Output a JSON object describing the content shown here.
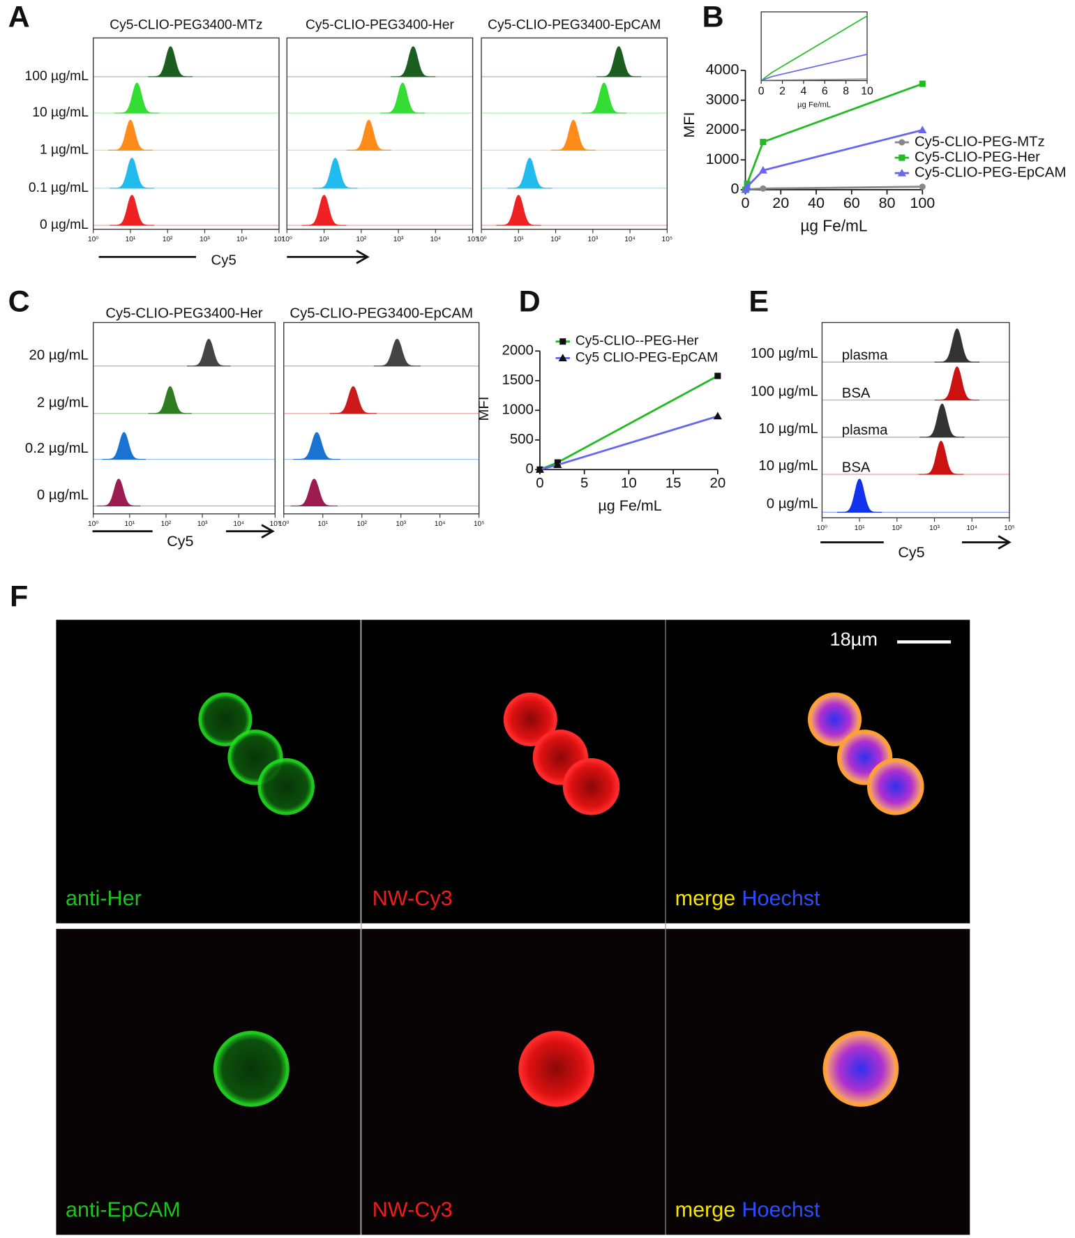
{
  "chart_data": [
    {
      "type": "ridgeline",
      "panel": "A",
      "categories": [
        "100 µg/mL",
        "10 µg/mL",
        "1 µg/mL",
        "0.1 µg/mL",
        "0 µg/mL"
      ],
      "series": [
        {
          "name": "Cy5-CLIO-PEG3400-MTz",
          "colors": [
            "#1b5e20",
            "#33dd33",
            "#ff8c1a",
            "#22bbee",
            "#ee2222"
          ],
          "values": [
            120,
            15,
            10,
            11,
            11
          ]
        },
        {
          "name": "Cy5-CLIO-PEG3400-Her",
          "colors": [
            "#1b5e20",
            "#33dd33",
            "#ff8c1a",
            "#22bbee",
            "#ee2222"
          ],
          "values": [
            2500,
            1300,
            160,
            20,
            10
          ]
        },
        {
          "name": "Cy5-CLIO-PEG3400-EpCAM",
          "colors": [
            "#1b5e20",
            "#33dd33",
            "#ff8c1a",
            "#22bbee",
            "#ee2222"
          ],
          "values": [
            5000,
            2000,
            300,
            20,
            10
          ]
        }
      ],
      "xlabel": "Cy5",
      "log_x": true,
      "xlim": [
        1,
        100000
      ],
      "xticks": [
        {
          "value": 1,
          "label": "10⁰"
        },
        {
          "value": 10,
          "label": "10¹"
        },
        {
          "value": 100,
          "label": "10²"
        },
        {
          "value": 1000,
          "label": "10³"
        },
        {
          "value": 10000,
          "label": "10⁴"
        },
        {
          "value": 100000,
          "label": "10⁵"
        }
      ]
    },
    {
      "type": "line",
      "panel": "B",
      "ylabel": "MFI",
      "xlabel": "µg Fe/mL",
      "x": [
        0,
        1,
        10,
        100
      ],
      "series": [
        {
          "name": "Cy5-CLIO-PEG-MTz",
          "color": "#888888",
          "marker": "circle",
          "values": [
            0,
            10,
            40,
            100
          ]
        },
        {
          "name": "Cy5-CLIO-PEG-Her",
          "color": "#22bb22",
          "marker": "square",
          "values": [
            0,
            200,
            1600,
            3550
          ]
        },
        {
          "name": "Cy5-CLIO-PEG-EpCAM",
          "color": "#6666ee",
          "marker": "triangle",
          "values": [
            0,
            100,
            650,
            2000
          ]
        }
      ],
      "xlim": [
        0,
        100
      ],
      "xticks": [
        0,
        20,
        40,
        60,
        80,
        100
      ],
      "ylim": [
        0,
        4000
      ],
      "yticks": [
        0,
        1000,
        2000,
        3000,
        4000
      ],
      "inset": {
        "xlim": [
          0,
          10
        ],
        "ylim": [
          0,
          1700
        ],
        "xticks": [
          0,
          2,
          4,
          6,
          8,
          10
        ],
        "xlabel": "µg Fe/mL"
      }
    },
    {
      "type": "ridgeline",
      "panel": "C",
      "categories": [
        "20 µg/mL",
        "2 µg/mL",
        "0.2 µg/mL",
        "0 µg/mL"
      ],
      "series": [
        {
          "name": "Cy5-CLIO-PEG3400-Her",
          "colors": [
            "#444444",
            "#2e7d1e",
            "#1a73d0",
            "#9c1b50"
          ],
          "values": [
            1500,
            130,
            7,
            5
          ]
        },
        {
          "name": "Cy5-CLIO-PEG3400-EpCAM",
          "colors": [
            "#444444",
            "#cc1a1a",
            "#1a73d0",
            "#9c1b50"
          ],
          "values": [
            800,
            60,
            7,
            6
          ]
        }
      ],
      "xlabel": "Cy5",
      "log_x": true,
      "xlim": [
        1,
        100000
      ],
      "xticks": [
        {
          "value": 1,
          "label": "10⁰"
        },
        {
          "value": 10,
          "label": "10¹"
        },
        {
          "value": 100,
          "label": "10²"
        },
        {
          "value": 1000,
          "label": "10³"
        },
        {
          "value": 10000,
          "label": "10⁴"
        },
        {
          "value": 100000,
          "label": "10⁵"
        }
      ]
    },
    {
      "type": "line",
      "panel": "D",
      "ylabel": "MFI",
      "xlabel": "µg Fe/mL",
      "x": [
        0,
        2,
        20
      ],
      "series": [
        {
          "name": "Cy5-CLIO--PEG-Her",
          "color": "#22bb22",
          "marker": "square",
          "values": [
            0,
            120,
            1580
          ]
        },
        {
          "name": "Cy5 CLIO-PEG-EpCAM",
          "color": "#6666ee",
          "marker": "triangle",
          "values": [
            0,
            80,
            900
          ]
        }
      ],
      "xlim": [
        0,
        20
      ],
      "xticks": [
        0,
        5,
        10,
        15,
        20
      ],
      "ylim": [
        0,
        2000
      ],
      "yticks": [
        0,
        500,
        1000,
        1500,
        2000
      ]
    },
    {
      "type": "ridgeline",
      "panel": "E",
      "categories": [
        "100 µg/mL",
        "100 µg/mL",
        "10 µg/mL",
        "10 µg/mL",
        "0 µg/mL"
      ],
      "series": [
        {
          "colors": [
            "#333333",
            "#cc1111",
            "#333333",
            "#cc1111",
            "#1133ee"
          ],
          "row_labels": [
            "plasma",
            "BSA",
            "plasma",
            "BSA",
            null
          ],
          "values": [
            4000,
            4000,
            1600,
            1500,
            10
          ]
        }
      ],
      "xlabel": "Cy5",
      "log_x": true,
      "xlim": [
        1,
        100000
      ],
      "xticks": [
        {
          "value": 1,
          "label": "10⁰"
        },
        {
          "value": 10,
          "label": "10¹"
        },
        {
          "value": 100,
          "label": "10²"
        },
        {
          "value": 1000,
          "label": "10³"
        },
        {
          "value": 10000,
          "label": "10⁴"
        },
        {
          "value": 100000,
          "label": "10⁵"
        }
      ]
    }
  ],
  "figure_F": {
    "panel": "F",
    "scale_bar": "18µm",
    "label_colors": [
      "#1fc31f",
      "#ee1c1c",
      "#f5e600",
      "#2a4dff"
    ],
    "rows": [
      [
        "anti-Her",
        "NW-Cy3",
        "merge",
        "Hoechst"
      ],
      [
        "anti-EpCAM",
        "NW-Cy3",
        "merge",
        "Hoechst"
      ]
    ]
  }
}
